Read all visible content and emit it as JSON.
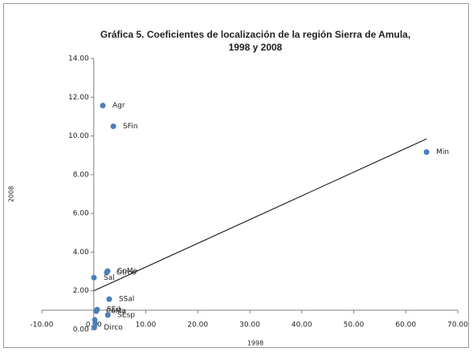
{
  "chart_data": {
    "type": "scatter",
    "title": [
      "Gráfica 5. Coeficientes de localización de la región Sierra de Amula,",
      "1998 y 2008"
    ],
    "x_label": "1998",
    "y_label": "2008",
    "color": "#4a7ebb",
    "labels": [
      "Agr",
      "SFin",
      "Min",
      "CoMe",
      "Otros",
      "Sal",
      "SSal",
      "SEd",
      "CoMa",
      "SEsp",
      "Dirco",
      null,
      null
    ],
    "x": [
      1.74,
      3.76,
      64.0,
      2.67,
      2.5,
      0.04,
      2.97,
      0.65,
      0.5,
      2.7,
      0.1,
      0.2,
      0.3
    ],
    "values": [
      11.57,
      10.5,
      9.17,
      3.02,
      2.95,
      2.68,
      1.57,
      1.03,
      0.95,
      0.75,
      0.1,
      0.5,
      0.3
    ],
    "trendline": {
      "x": [
        0,
        64
      ],
      "y": [
        2.0,
        9.85
      ]
    },
    "xlim": [
      -10,
      70
    ],
    "ylim": [
      0,
      14
    ],
    "x_axis_cross": 1,
    "xticks": [
      {
        "value": -10,
        "label": "-10.00"
      },
      {
        "value": 0,
        "label": "0.00"
      },
      {
        "value": 10,
        "label": "10.00"
      },
      {
        "value": 20,
        "label": "20.00"
      },
      {
        "value": 30,
        "label": "30.00"
      },
      {
        "value": 40,
        "label": "40.00"
      },
      {
        "value": 50,
        "label": "50.00"
      },
      {
        "value": 60,
        "label": "60.00"
      },
      {
        "value": 70,
        "label": "70.00"
      }
    ],
    "yticks": [
      {
        "value": 0,
        "label": "0.00"
      },
      {
        "value": 2,
        "label": "2.00"
      },
      {
        "value": 4,
        "label": "4.00"
      },
      {
        "value": 6,
        "label": "6.00"
      },
      {
        "value": 8,
        "label": "8.00"
      },
      {
        "value": 10,
        "label": "10.00"
      },
      {
        "value": 12,
        "label": "12.00"
      },
      {
        "value": 14,
        "label": "14.00"
      }
    ]
  }
}
